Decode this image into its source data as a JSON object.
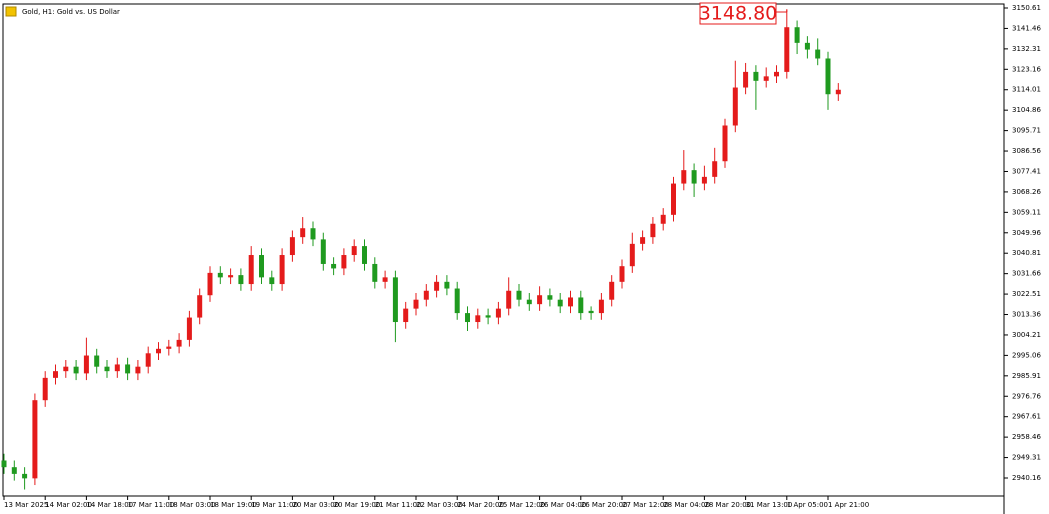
{
  "chart_data": {
    "type": "candlestick",
    "title": "Gold, H1:  Gold vs. US Dollar",
    "price_label": "3148.80",
    "up_color": "#e41b1b",
    "down_color": "#1f9a1f",
    "grid": false,
    "ylim": [
      2932.1,
      3152.4
    ],
    "yticks": [
      3150.61,
      3141.46,
      3132.31,
      3123.16,
      3114.01,
      3104.86,
      3095.71,
      3086.56,
      3077.41,
      3068.26,
      3059.11,
      3049.96,
      3040.81,
      3031.66,
      3022.51,
      3013.36,
      3004.21,
      2995.06,
      2985.91,
      2976.76,
      2967.61,
      2958.46,
      2949.31,
      2940.16
    ],
    "categories": [
      "13 Mar 2025",
      null,
      null,
      null,
      "14 Mar 02:00",
      null,
      null,
      null,
      "14 Mar 18:00",
      null,
      null,
      null,
      "17 Mar 11:00",
      null,
      null,
      null,
      "18 Mar 03:00",
      null,
      null,
      null,
      "18 Mar 19:00",
      null,
      null,
      null,
      "19 Mar 11:00",
      null,
      null,
      null,
      "20 Mar 03:00",
      null,
      null,
      null,
      "20 Mar 19:00",
      null,
      null,
      null,
      "21 Mar 11:00",
      null,
      null,
      null,
      "22 Mar 03:00",
      null,
      null,
      null,
      "24 Mar 20:00",
      null,
      null,
      null,
      "25 Mar 12:00",
      null,
      null,
      null,
      "26 Mar 04:00",
      null,
      null,
      null,
      "26 Mar 20:00",
      null,
      null,
      null,
      "27 Mar 12:00",
      null,
      null,
      null,
      "28 Mar 04:00",
      null,
      null,
      null,
      "28 Mar 20:00",
      null,
      null,
      null,
      "31 Mar 13:00",
      null,
      null,
      null,
      "1 Apr 05:00",
      null,
      null,
      null,
      "1 Apr 21:00",
      null
    ],
    "open": [
      2948,
      2945,
      2942,
      2940,
      2975,
      2985,
      2988,
      2990,
      2987,
      2995,
      2990,
      2988,
      2991,
      2987,
      2990,
      2996,
      2998,
      2999,
      3002,
      3012,
      3022,
      3032,
      3030,
      3031,
      3027,
      3040,
      3030,
      3027,
      3040,
      3048,
      3052,
      3047,
      3036,
      3034,
      3040,
      3044,
      3036,
      3028,
      3030,
      3010,
      3016,
      3020,
      3024,
      3028,
      3025,
      3014,
      3010,
      3013,
      3012,
      3016,
      3024,
      3020,
      3018,
      3022,
      3020,
      3017,
      3021,
      3015,
      3014,
      3020,
      3028,
      3035,
      3045,
      3048,
      3054,
      3058,
      3072,
      3078,
      3072,
      3075,
      3082,
      3098,
      3115,
      3122,
      3118,
      3120,
      3122,
      3142,
      3135,
      3132,
      3128,
      3112
    ],
    "high": [
      2951,
      2948,
      2945,
      2978,
      2988,
      2991,
      2993,
      2993,
      3003,
      2998,
      2993,
      2994,
      2994,
      2993,
      2999,
      3001,
      3002,
      3005,
      3015,
      3025,
      3035,
      3035,
      3034,
      3034,
      3044,
      3043,
      3033,
      3043,
      3051,
      3057,
      3055,
      3050,
      3039,
      3043,
      3047,
      3047,
      3039,
      3033,
      3033,
      3019,
      3023,
      3027,
      3031,
      3031,
      3028,
      3017,
      3016,
      3016,
      3019,
      3030,
      3027,
      3023,
      3026,
      3025,
      3023,
      3024,
      3024,
      3017,
      3023,
      3031,
      3038,
      3050,
      3051,
      3057,
      3061,
      3075,
      3087,
      3081,
      3080,
      3088,
      3101,
      3127,
      3126,
      3125,
      3124,
      3125,
      3150,
      3145,
      3138,
      3137,
      3131,
      3117
    ],
    "low": [
      2942,
      2939,
      2935,
      2937,
      2972,
      2982,
      2985,
      2984,
      2984,
      2987,
      2985,
      2985,
      2984,
      2984,
      2987,
      2993,
      2995,
      2996,
      2999,
      3009,
      3019,
      3027,
      3027,
      3024,
      3024,
      3027,
      3024,
      3024,
      3037,
      3045,
      3044,
      3033,
      3031,
      3031,
      3037,
      3033,
      3025,
      3025,
      3001,
      3007,
      3013,
      3017,
      3021,
      3022,
      3011,
      3006,
      3007,
      3009,
      3009,
      3013,
      3017,
      3015,
      3015,
      3017,
      3014,
      3014,
      3011,
      3011,
      3011,
      3017,
      3025,
      3032,
      3042,
      3045,
      3051,
      3055,
      3069,
      3066,
      3069,
      3072,
      3079,
      3095,
      3112,
      3105,
      3115,
      3117,
      3119,
      3130,
      3128,
      3125,
      3105,
      3109
    ],
    "close": [
      2945,
      2942,
      2940,
      2975,
      2985,
      2988,
      2990,
      2987,
      2995,
      2990,
      2988,
      2991,
      2987,
      2990,
      2996,
      2998,
      2999,
      3002,
      3012,
      3022,
      3032,
      3030,
      3031,
      3027,
      3040,
      3030,
      3027,
      3040,
      3048,
      3052,
      3047,
      3036,
      3034,
      3040,
      3044,
      3036,
      3028,
      3030,
      3010,
      3016,
      3020,
      3024,
      3028,
      3025,
      3014,
      3010,
      3013,
      3012,
      3016,
      3024,
      3020,
      3018,
      3022,
      3020,
      3017,
      3021,
      3014,
      3014,
      3020,
      3028,
      3035,
      3045,
      3048,
      3054,
      3058,
      3072,
      3078,
      3072,
      3075,
      3082,
      3098,
      3115,
      3122,
      3118,
      3120,
      3122,
      3142,
      3135,
      3132,
      3128,
      3112,
      3114
    ]
  }
}
